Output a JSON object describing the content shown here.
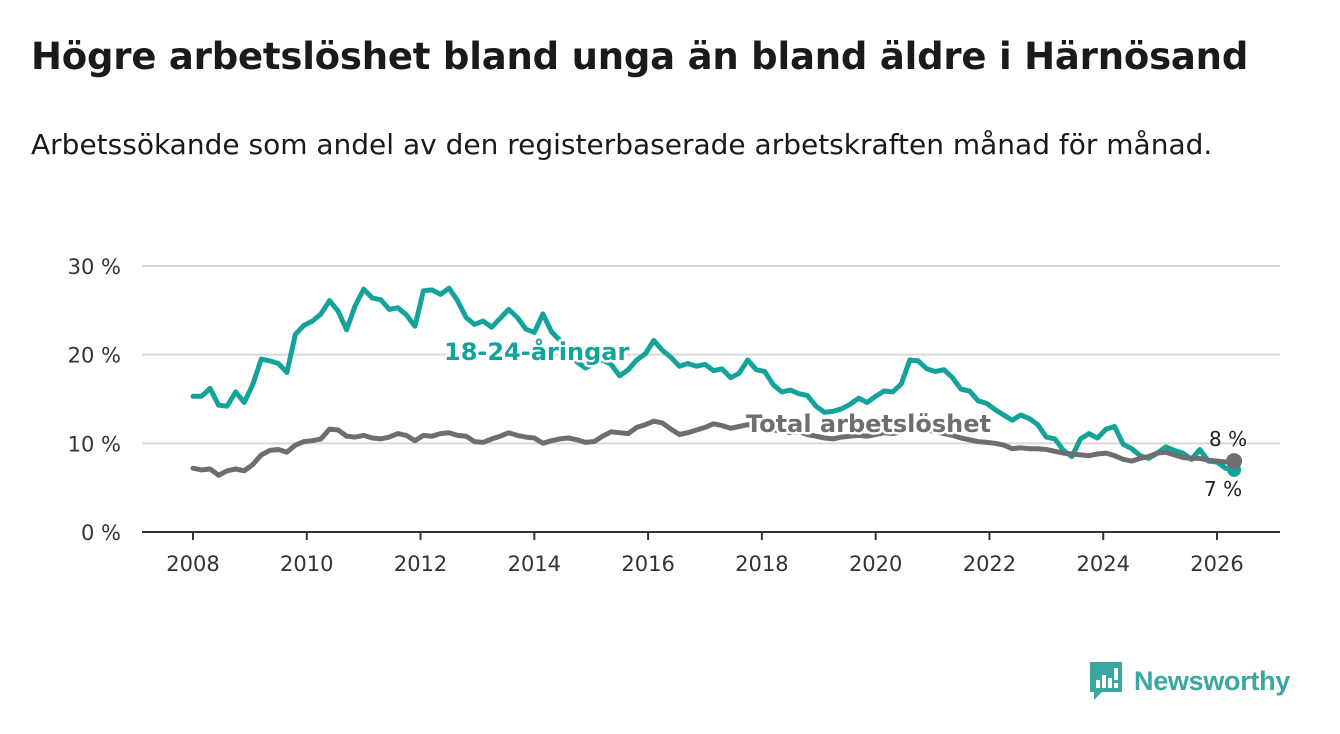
{
  "title": "Högre arbetslöshet bland unga än bland äldre i Härnösand",
  "subtitle": "Arbetssökande som andel av den registerbaserade arbetskraften månad för månad.",
  "brand": {
    "name": "Newsworthy",
    "icon": "newsworthy-logo-icon",
    "color": "#3aa7a0"
  },
  "chart_data": {
    "type": "line",
    "title": "Högre arbetslöshet bland unga än bland äldre i Härnösand",
    "xlabel": "",
    "ylabel": "",
    "xlim": [
      2008,
      2027.1
    ],
    "ylim": [
      0,
      30
    ],
    "grid": true,
    "x_ticks": [
      2008,
      2010,
      2012,
      2014,
      2016,
      2018,
      2020,
      2022,
      2024,
      2026
    ],
    "x_tick_labels": [
      "2008",
      "2010",
      "2012",
      "2014",
      "2016",
      "2018",
      "2020",
      "2022",
      "2024",
      "2026"
    ],
    "y_ticks": [
      0,
      10,
      20,
      30
    ],
    "y_tick_labels": [
      "0 %",
      "10 %",
      "20 %",
      "30 %"
    ],
    "series": [
      {
        "name": "18-24-åringar",
        "label": "18-24-åringar",
        "color": "#14a39a",
        "end_label": "7 %",
        "points": [
          [
            2008.0,
            15.3
          ],
          [
            2008.15,
            15.3
          ],
          [
            2008.3,
            16.2
          ],
          [
            2008.45,
            14.3
          ],
          [
            2008.6,
            14.2
          ],
          [
            2008.75,
            15.8
          ],
          [
            2008.9,
            14.6
          ],
          [
            2009.05,
            16.6
          ],
          [
            2009.2,
            19.5
          ],
          [
            2009.35,
            19.3
          ],
          [
            2009.5,
            19.0
          ],
          [
            2009.65,
            18.0
          ],
          [
            2009.8,
            22.3
          ],
          [
            2009.95,
            23.3
          ],
          [
            2010.1,
            23.8
          ],
          [
            2010.25,
            24.6
          ],
          [
            2010.4,
            26.1
          ],
          [
            2010.55,
            24.9
          ],
          [
            2010.7,
            22.8
          ],
          [
            2010.85,
            25.5
          ],
          [
            2011.0,
            27.4
          ],
          [
            2011.15,
            26.4
          ],
          [
            2011.3,
            26.2
          ],
          [
            2011.45,
            25.1
          ],
          [
            2011.6,
            25.3
          ],
          [
            2011.75,
            24.5
          ],
          [
            2011.9,
            23.2
          ],
          [
            2012.05,
            27.2
          ],
          [
            2012.2,
            27.3
          ],
          [
            2012.35,
            26.8
          ],
          [
            2012.5,
            27.5
          ],
          [
            2012.65,
            26.1
          ],
          [
            2012.8,
            24.2
          ],
          [
            2012.95,
            23.4
          ],
          [
            2013.1,
            23.8
          ],
          [
            2013.25,
            23.1
          ],
          [
            2013.4,
            24.1
          ],
          [
            2013.55,
            25.1
          ],
          [
            2013.7,
            24.2
          ],
          [
            2013.85,
            22.9
          ],
          [
            2014.0,
            22.5
          ],
          [
            2014.15,
            24.6
          ],
          [
            2014.3,
            22.6
          ],
          [
            2014.45,
            21.6
          ],
          [
            2014.6,
            20.3
          ],
          [
            2014.75,
            19.2
          ],
          [
            2014.9,
            18.5
          ],
          [
            2015.05,
            19.0
          ],
          [
            2015.2,
            19.4
          ],
          [
            2015.35,
            18.9
          ],
          [
            2015.5,
            17.6
          ],
          [
            2015.65,
            18.3
          ],
          [
            2015.8,
            19.4
          ],
          [
            2015.95,
            20.1
          ],
          [
            2016.1,
            21.6
          ],
          [
            2016.25,
            20.5
          ],
          [
            2016.4,
            19.7
          ],
          [
            2016.55,
            18.7
          ],
          [
            2016.7,
            19.0
          ],
          [
            2016.85,
            18.7
          ],
          [
            2017.0,
            18.9
          ],
          [
            2017.15,
            18.2
          ],
          [
            2017.3,
            18.4
          ],
          [
            2017.45,
            17.4
          ],
          [
            2017.6,
            17.9
          ],
          [
            2017.75,
            19.4
          ],
          [
            2017.9,
            18.3
          ],
          [
            2018.05,
            18.1
          ],
          [
            2018.2,
            16.6
          ],
          [
            2018.35,
            15.8
          ],
          [
            2018.5,
            16.0
          ],
          [
            2018.65,
            15.6
          ],
          [
            2018.8,
            15.4
          ],
          [
            2018.95,
            14.2
          ],
          [
            2019.1,
            13.5
          ],
          [
            2019.25,
            13.6
          ],
          [
            2019.4,
            13.9
          ],
          [
            2019.55,
            14.4
          ],
          [
            2019.7,
            15.1
          ],
          [
            2019.85,
            14.6
          ],
          [
            2020.0,
            15.3
          ],
          [
            2020.15,
            15.9
          ],
          [
            2020.3,
            15.8
          ],
          [
            2020.45,
            16.7
          ],
          [
            2020.6,
            19.4
          ],
          [
            2020.75,
            19.3
          ],
          [
            2020.9,
            18.4
          ],
          [
            2021.05,
            18.1
          ],
          [
            2021.2,
            18.3
          ],
          [
            2021.35,
            17.4
          ],
          [
            2021.5,
            16.1
          ],
          [
            2021.65,
            15.9
          ],
          [
            2021.8,
            14.8
          ],
          [
            2021.95,
            14.5
          ],
          [
            2022.1,
            13.8
          ],
          [
            2022.25,
            13.2
          ],
          [
            2022.4,
            12.6
          ],
          [
            2022.55,
            13.2
          ],
          [
            2022.7,
            12.8
          ],
          [
            2022.85,
            12.1
          ],
          [
            2023.0,
            10.7
          ],
          [
            2023.15,
            10.5
          ],
          [
            2023.3,
            9.2
          ],
          [
            2023.45,
            8.5
          ],
          [
            2023.6,
            10.5
          ],
          [
            2023.75,
            11.1
          ],
          [
            2023.9,
            10.6
          ],
          [
            2024.05,
            11.6
          ],
          [
            2024.2,
            11.9
          ],
          [
            2024.35,
            9.9
          ],
          [
            2024.5,
            9.4
          ],
          [
            2024.65,
            8.6
          ],
          [
            2024.8,
            8.3
          ],
          [
            2024.95,
            8.9
          ],
          [
            2025.1,
            9.6
          ],
          [
            2025.25,
            9.2
          ],
          [
            2025.4,
            8.9
          ],
          [
            2025.55,
            8.2
          ],
          [
            2025.7,
            9.3
          ],
          [
            2025.85,
            8.0
          ],
          [
            2026.0,
            7.9
          ],
          [
            2026.15,
            7.2
          ],
          [
            2026.3,
            7.0
          ]
        ]
      },
      {
        "name": "Total arbetslöshet",
        "label": "Total arbetslöshet",
        "color": "#6d6e71",
        "end_label": "8 %",
        "points": [
          [
            2008.0,
            7.2
          ],
          [
            2008.15,
            7.0
          ],
          [
            2008.3,
            7.1
          ],
          [
            2008.45,
            6.4
          ],
          [
            2008.6,
            6.9
          ],
          [
            2008.75,
            7.1
          ],
          [
            2008.9,
            6.9
          ],
          [
            2009.05,
            7.6
          ],
          [
            2009.2,
            8.7
          ],
          [
            2009.35,
            9.2
          ],
          [
            2009.5,
            9.3
          ],
          [
            2009.65,
            9.0
          ],
          [
            2009.8,
            9.8
          ],
          [
            2009.95,
            10.2
          ],
          [
            2010.1,
            10.3
          ],
          [
            2010.25,
            10.5
          ],
          [
            2010.4,
            11.6
          ],
          [
            2010.55,
            11.5
          ],
          [
            2010.7,
            10.8
          ],
          [
            2010.85,
            10.7
          ],
          [
            2011.0,
            10.9
          ],
          [
            2011.15,
            10.6
          ],
          [
            2011.3,
            10.5
          ],
          [
            2011.45,
            10.7
          ],
          [
            2011.6,
            11.1
          ],
          [
            2011.75,
            10.9
          ],
          [
            2011.9,
            10.3
          ],
          [
            2012.05,
            10.9
          ],
          [
            2012.2,
            10.8
          ],
          [
            2012.35,
            11.1
          ],
          [
            2012.5,
            11.2
          ],
          [
            2012.65,
            10.9
          ],
          [
            2012.8,
            10.8
          ],
          [
            2012.95,
            10.2
          ],
          [
            2013.1,
            10.1
          ],
          [
            2013.25,
            10.5
          ],
          [
            2013.4,
            10.8
          ],
          [
            2013.55,
            11.2
          ],
          [
            2013.7,
            10.9
          ],
          [
            2013.85,
            10.7
          ],
          [
            2014.0,
            10.6
          ],
          [
            2014.15,
            10.0
          ],
          [
            2014.3,
            10.3
          ],
          [
            2014.45,
            10.5
          ],
          [
            2014.6,
            10.6
          ],
          [
            2014.75,
            10.4
          ],
          [
            2014.9,
            10.1
          ],
          [
            2015.05,
            10.2
          ],
          [
            2015.2,
            10.8
          ],
          [
            2015.35,
            11.3
          ],
          [
            2015.5,
            11.2
          ],
          [
            2015.65,
            11.1
          ],
          [
            2015.8,
            11.8
          ],
          [
            2015.95,
            12.1
          ],
          [
            2016.1,
            12.5
          ],
          [
            2016.25,
            12.3
          ],
          [
            2016.4,
            11.6
          ],
          [
            2016.55,
            11.0
          ],
          [
            2016.7,
            11.2
          ],
          [
            2016.85,
            11.5
          ],
          [
            2017.0,
            11.8
          ],
          [
            2017.15,
            12.2
          ],
          [
            2017.3,
            12.0
          ],
          [
            2017.45,
            11.7
          ],
          [
            2017.6,
            11.9
          ],
          [
            2017.75,
            12.1
          ],
          [
            2017.9,
            11.9
          ],
          [
            2018.05,
            11.7
          ],
          [
            2018.2,
            11.5
          ],
          [
            2018.35,
            11.4
          ],
          [
            2018.5,
            11.2
          ],
          [
            2018.65,
            11.3
          ],
          [
            2018.8,
            11.0
          ],
          [
            2018.95,
            10.8
          ],
          [
            2019.1,
            10.6
          ],
          [
            2019.25,
            10.5
          ],
          [
            2019.4,
            10.7
          ],
          [
            2019.55,
            10.8
          ],
          [
            2019.7,
            10.9
          ],
          [
            2019.85,
            10.8
          ],
          [
            2020.0,
            11.0
          ],
          [
            2020.15,
            11.2
          ],
          [
            2020.3,
            11.1
          ],
          [
            2020.45,
            11.3
          ],
          [
            2020.6,
            11.8
          ],
          [
            2020.75,
            11.7
          ],
          [
            2020.9,
            11.5
          ],
          [
            2021.05,
            11.3
          ],
          [
            2021.2,
            11.1
          ],
          [
            2021.35,
            10.9
          ],
          [
            2021.5,
            10.6
          ],
          [
            2021.65,
            10.4
          ],
          [
            2021.8,
            10.2
          ],
          [
            2021.95,
            10.1
          ],
          [
            2022.1,
            10.0
          ],
          [
            2022.25,
            9.8
          ],
          [
            2022.4,
            9.4
          ],
          [
            2022.55,
            9.5
          ],
          [
            2022.7,
            9.4
          ],
          [
            2022.85,
            9.4
          ],
          [
            2023.0,
            9.3
          ],
          [
            2023.15,
            9.1
          ],
          [
            2023.3,
            8.9
          ],
          [
            2023.45,
            8.8
          ],
          [
            2023.6,
            8.7
          ],
          [
            2023.75,
            8.6
          ],
          [
            2023.9,
            8.8
          ],
          [
            2024.05,
            8.9
          ],
          [
            2024.2,
            8.6
          ],
          [
            2024.35,
            8.2
          ],
          [
            2024.5,
            8.0
          ],
          [
            2024.65,
            8.3
          ],
          [
            2024.8,
            8.5
          ],
          [
            2024.95,
            8.9
          ],
          [
            2025.1,
            9.0
          ],
          [
            2025.25,
            8.7
          ],
          [
            2025.4,
            8.4
          ],
          [
            2025.55,
            8.3
          ],
          [
            2025.7,
            8.3
          ],
          [
            2025.85,
            8.1
          ],
          [
            2026.0,
            8.0
          ],
          [
            2026.15,
            7.9
          ],
          [
            2026.3,
            8.0
          ]
        ]
      }
    ]
  }
}
